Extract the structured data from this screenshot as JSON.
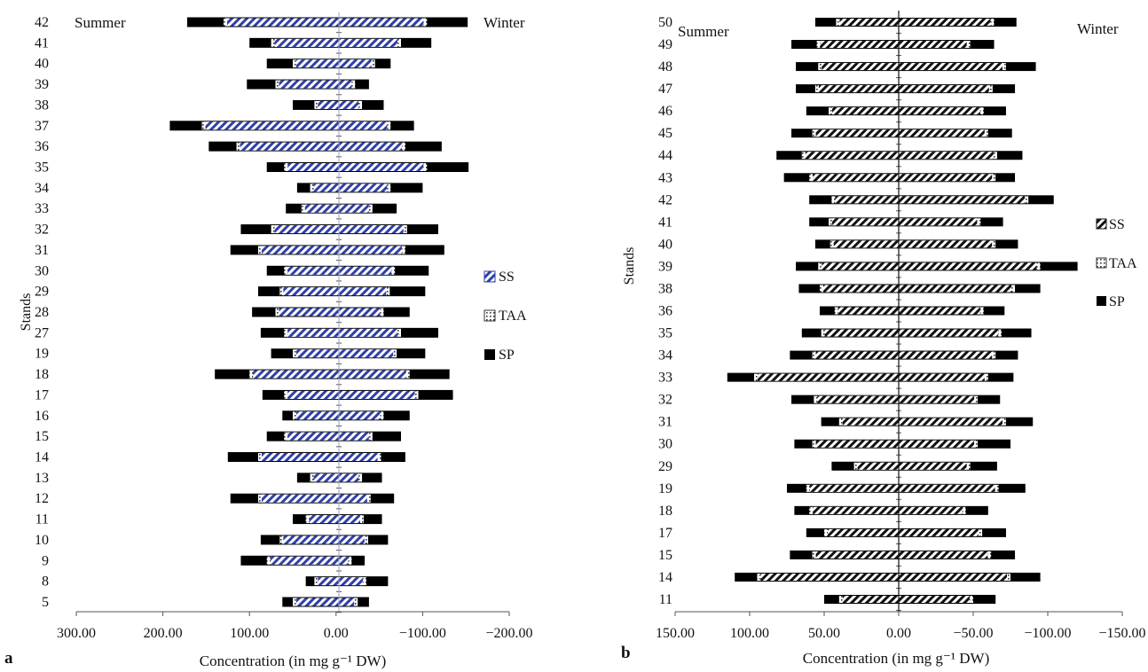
{
  "chart_data": [
    {
      "type": "bar",
      "panel_label": "a",
      "ylabel": "Stands",
      "xlabel": "Concentration (in mg g⁻¹ DW)",
      "left_annotation": "Summer",
      "right_annotation": "Winter",
      "x_ticks": [
        "300.00",
        "200.00",
        "100.00",
        "0.00",
        "−100.00",
        "−200.00"
      ],
      "xlim": [
        300,
        -200
      ],
      "legend": [
        "SS",
        "TAA",
        "SP"
      ],
      "legend_position": "right",
      "categories": [
        "5",
        "8",
        "9",
        "10",
        "11",
        "12",
        "13",
        "14",
        "15",
        "16",
        "17",
        "18",
        "19",
        "27",
        "28",
        "29",
        "30",
        "31",
        "32",
        "33",
        "34",
        "35",
        "36",
        "37",
        "38",
        "39",
        "40",
        "41",
        "42"
      ],
      "series": [
        {
          "name": "SP",
          "summer": [
            62,
            35,
            110,
            87,
            50,
            122,
            45,
            125,
            80,
            62,
            85,
            140,
            75,
            87,
            97,
            90,
            80,
            122,
            110,
            58,
            45,
            80,
            147,
            192,
            50,
            103,
            80,
            100,
            172
          ],
          "winter": [
            -38,
            -60,
            -33,
            -60,
            -53,
            -67,
            -53,
            -80,
            -75,
            -85,
            -135,
            -131,
            -103,
            -118,
            -85,
            -103,
            -107,
            -125,
            -118,
            -70,
            -100,
            -153,
            -122,
            -90,
            -55,
            -38,
            -63,
            -110,
            -152
          ]
        },
        {
          "name": "TAA",
          "summer": [
            50,
            25,
            80,
            65,
            35,
            90,
            30,
            90,
            60,
            50,
            60,
            100,
            50,
            60,
            70,
            65,
            60,
            90,
            75,
            40,
            30,
            60,
            115,
            155,
            25,
            70,
            50,
            75,
            130
          ],
          "winter": [
            -25,
            -35,
            -18,
            -37,
            -32,
            -40,
            -30,
            -52,
            -42,
            -55,
            -95,
            -85,
            -70,
            -75,
            -55,
            -62,
            -68,
            -80,
            -82,
            -42,
            -63,
            -105,
            -80,
            -63,
            -30,
            -22,
            -45,
            -75,
            -105
          ]
        }
      ],
      "legend_color_notes": {
        "SS": "#2f3fa8",
        "TAA": "#ffffff",
        "SP": "#000000"
      }
    },
    {
      "type": "bar",
      "panel_label": "b",
      "ylabel": "Stands",
      "xlabel": "Concentration (in mg g⁻¹ DW)",
      "left_annotation": "Summer",
      "right_annotation": "Winter",
      "x_ticks": [
        "150.00",
        "100.00",
        "50.00",
        "0.00",
        "−50.00",
        "−100.00",
        "−150.00"
      ],
      "xlim": [
        150,
        -150
      ],
      "legend": [
        "SS",
        "TAA",
        "SP"
      ],
      "legend_position": "right",
      "categories": [
        "11",
        "14",
        "15",
        "17",
        "18",
        "19",
        "29",
        "30",
        "31",
        "32",
        "33",
        "34",
        "35",
        "36",
        "38",
        "39",
        "40",
        "41",
        "42",
        "43",
        "44",
        "45",
        "46",
        "47",
        "48",
        "49",
        "50"
      ],
      "series": [
        {
          "name": "SP",
          "summer": [
            50,
            110,
            73,
            62,
            70,
            75,
            45,
            70,
            52,
            72,
            115,
            73,
            65,
            53,
            67,
            69,
            56,
            60,
            60,
            77,
            82,
            72,
            62,
            69,
            69,
            72,
            56
          ],
          "winter": [
            -65,
            -95,
            -78,
            -72,
            -60,
            -85,
            -66,
            -75,
            -90,
            -68,
            -77,
            -80,
            -89,
            -71,
            -95,
            -120,
            -80,
            -70,
            -104,
            -78,
            -83,
            -76,
            -72,
            -78,
            -92,
            -64,
            -79
          ]
        },
        {
          "name": "TAA",
          "summer": [
            40,
            95,
            58,
            50,
            60,
            62,
            30,
            58,
            40,
            57,
            97,
            58,
            52,
            43,
            53,
            54,
            46,
            47,
            45,
            60,
            65,
            58,
            47,
            56,
            54,
            55,
            42
          ],
          "winter": [
            -50,
            -75,
            -62,
            -56,
            -45,
            -67,
            -48,
            -53,
            -72,
            -53,
            -60,
            -65,
            -69,
            -57,
            -78,
            -95,
            -65,
            -55,
            -87,
            -65,
            -66,
            -60,
            -57,
            -63,
            -72,
            -48,
            -64
          ]
        }
      ],
      "legend_color_notes": {
        "SS": "#111111",
        "TAA": "#ffffff",
        "SP": "#000000"
      }
    }
  ]
}
